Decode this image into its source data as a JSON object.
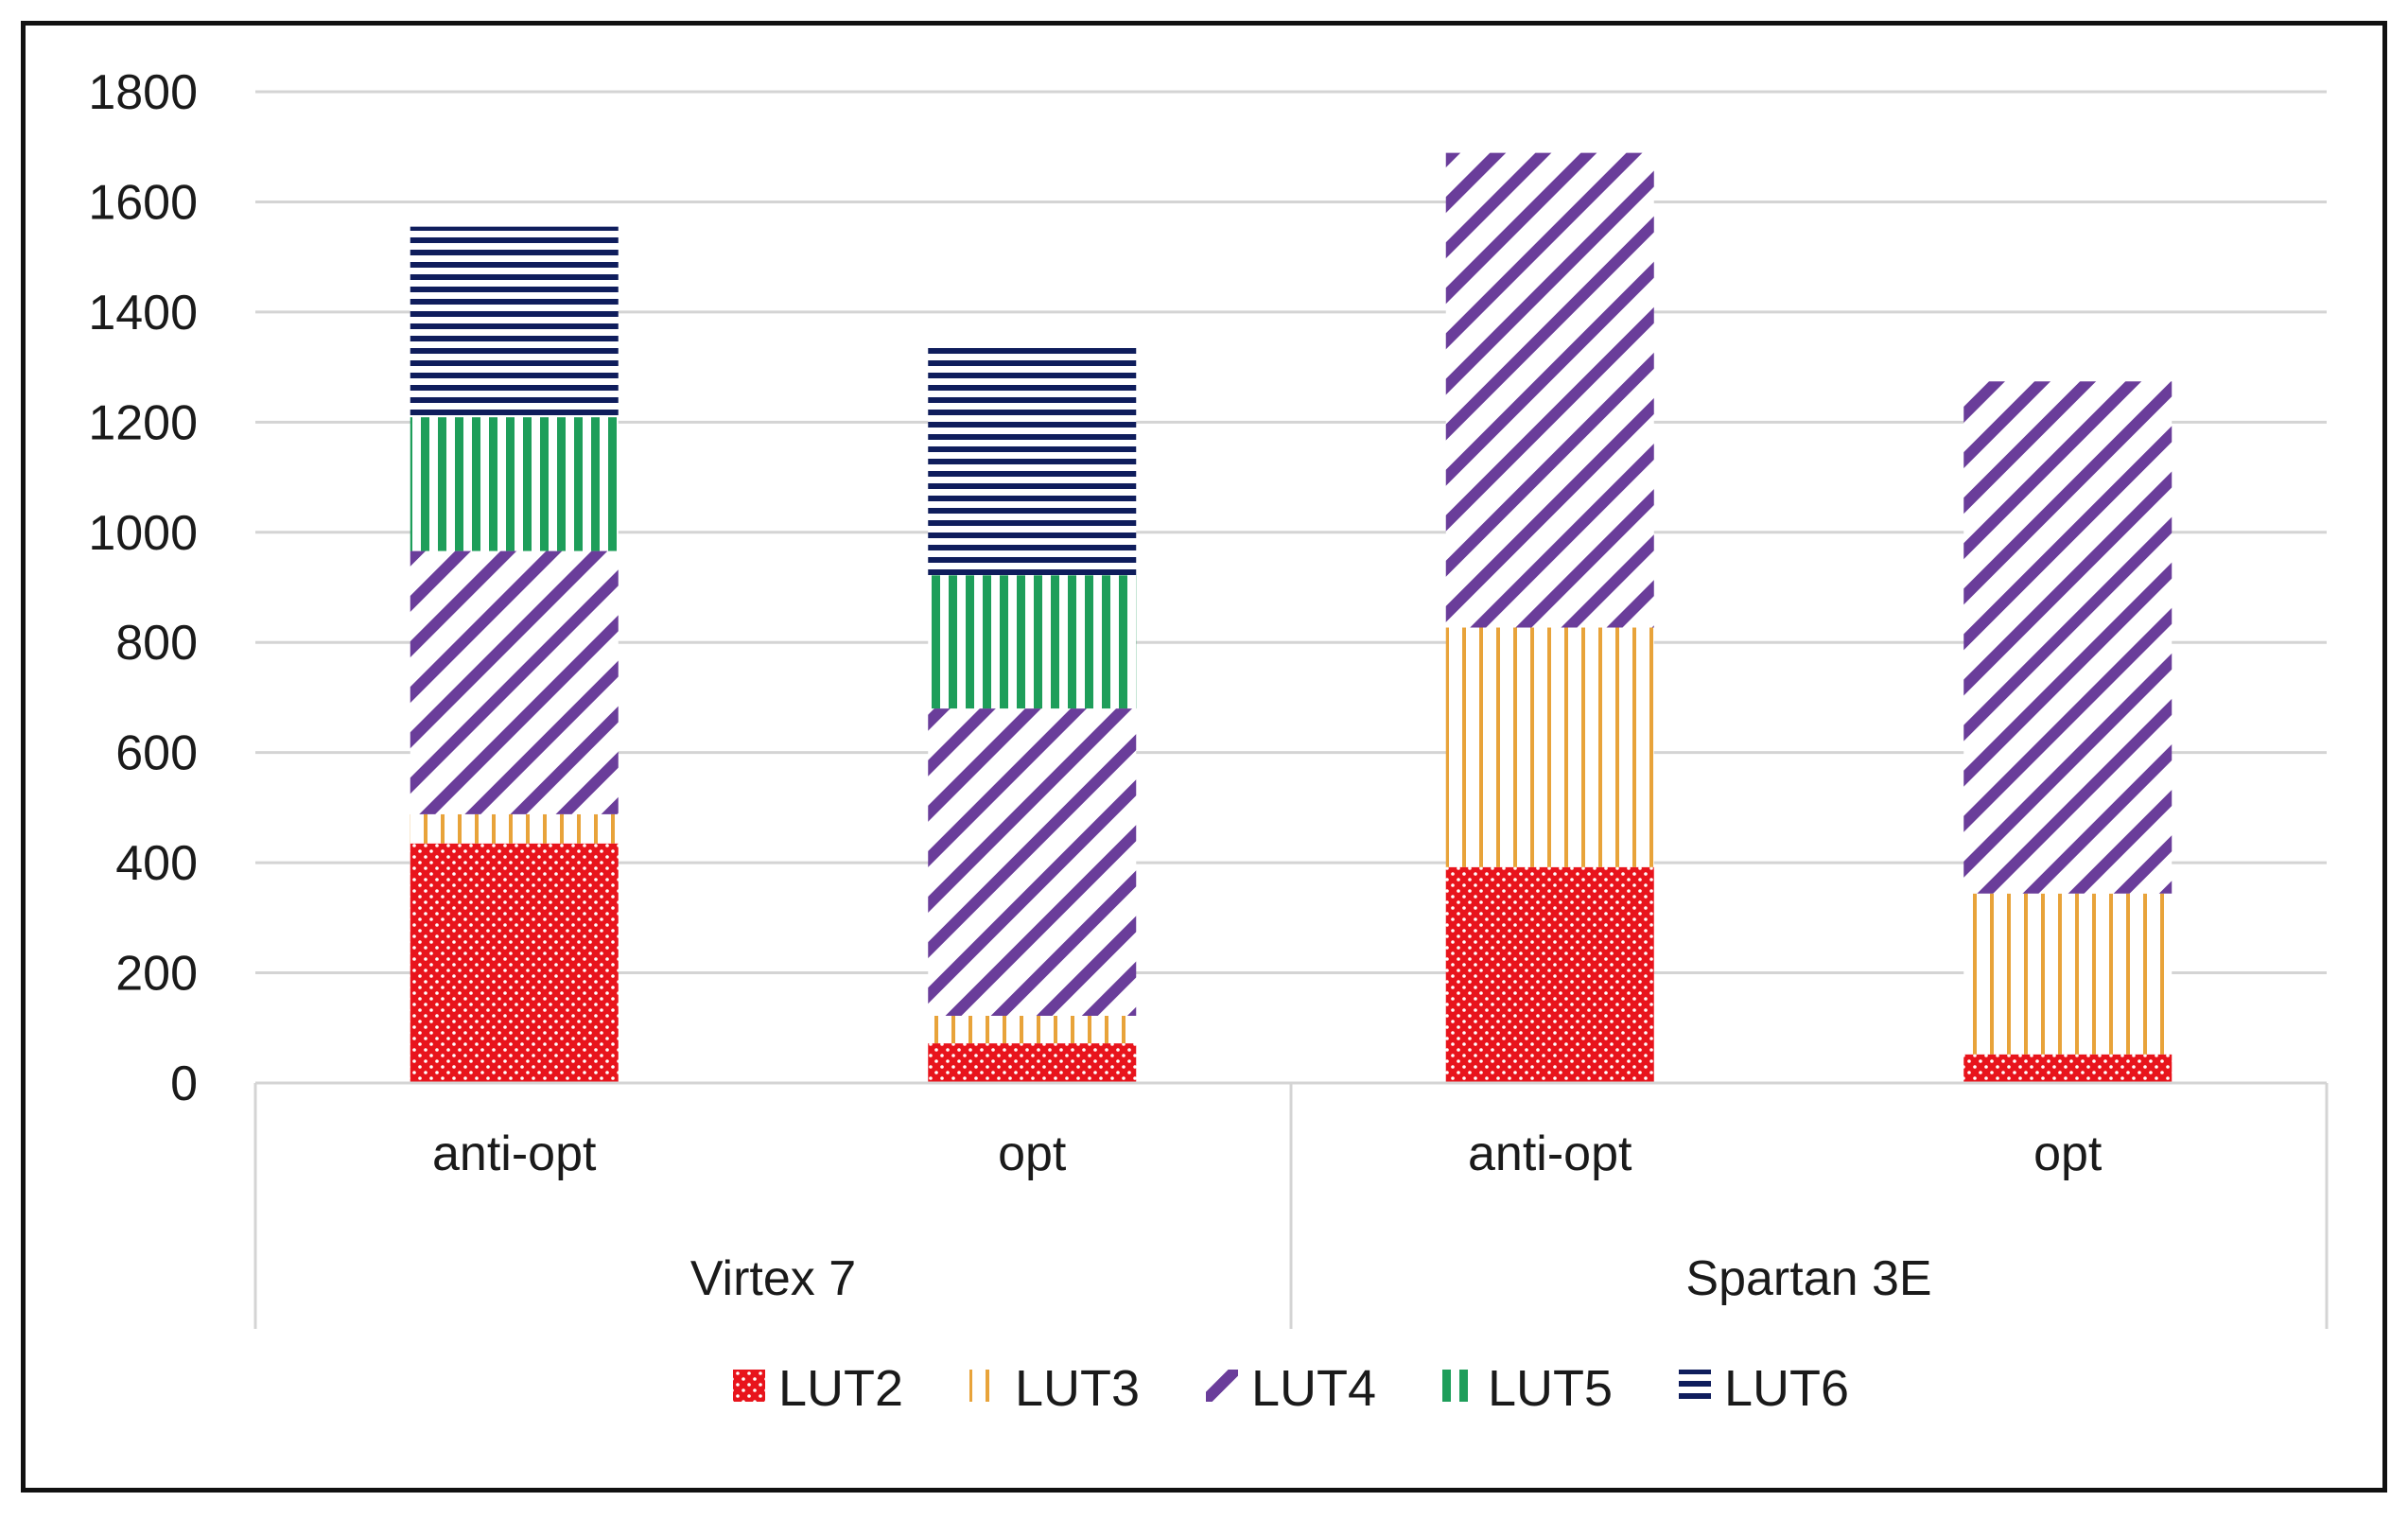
{
  "chart_data": {
    "type": "bar",
    "stacked": true,
    "title": "",
    "xlabel": "",
    "ylabel": "",
    "ylim": [
      0,
      1800
    ],
    "yticks": [
      0,
      200,
      400,
      600,
      800,
      1000,
      1200,
      1400,
      1600,
      1800
    ],
    "grid": true,
    "legend_position": "bottom",
    "groups": [
      {
        "name": "Virtex 7",
        "categories": [
          "anti-opt",
          "opt"
        ]
      },
      {
        "name": "Spartan 3E",
        "categories": [
          "anti-opt",
          "opt"
        ]
      }
    ],
    "categories": [
      "anti-opt",
      "opt",
      "anti-opt",
      "opt"
    ],
    "series": [
      {
        "name": "LUT2",
        "color": "#e8141c",
        "pattern": "dots",
        "values": [
          435,
          72,
          392,
          52
        ]
      },
      {
        "name": "LUT3",
        "color": "#e8a33a",
        "pattern": "vlines",
        "values": [
          53,
          50,
          435,
          292
        ]
      },
      {
        "name": "LUT4",
        "color": "#6a3d9a",
        "pattern": "diagonal",
        "values": [
          478,
          558,
          862,
          930
        ]
      },
      {
        "name": "LUT5",
        "color": "#1e9e5a",
        "pattern": "thickvlines",
        "values": [
          243,
          242,
          0,
          0
        ]
      },
      {
        "name": "LUT6",
        "color": "#0f1d5c",
        "pattern": "hlines",
        "values": [
          346,
          414,
          0,
          0
        ]
      }
    ]
  }
}
